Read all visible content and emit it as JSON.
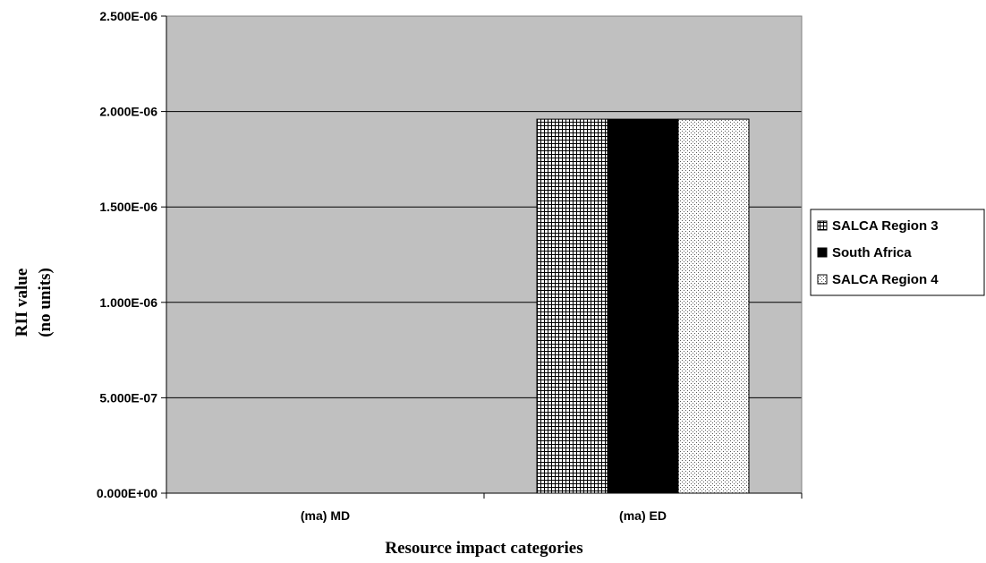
{
  "chart_data": {
    "type": "bar",
    "categories": [
      "(ma) MD",
      "(ma) ED"
    ],
    "series": [
      {
        "name": "SALCA Region 3",
        "values": [
          0,
          1.96e-06
        ]
      },
      {
        "name": "South Africa",
        "values": [
          0,
          1.96e-06
        ]
      },
      {
        "name": "SALCA Region 4",
        "values": [
          0,
          1.96e-06
        ]
      }
    ],
    "ylim": [
      0,
      2.5e-06
    ],
    "yticks": [
      0,
      5e-07,
      1e-06,
      1.5e-06,
      2e-06,
      2.5e-06
    ],
    "ytick_labels": [
      "0.000E+00",
      "5.000E-07",
      "1.000E-06",
      "1.500E-06",
      "2.000E-06",
      "2.500E-06"
    ],
    "xlabel": "Resource impact categories",
    "ylabel_line1": "RII value",
    "ylabel_line2": "(no units)",
    "grid": true,
    "legend_position": "right",
    "colors": {
      "plot_background": "#c0c0c0",
      "gridline": "#000000",
      "bar_outline": "#000000"
    }
  }
}
